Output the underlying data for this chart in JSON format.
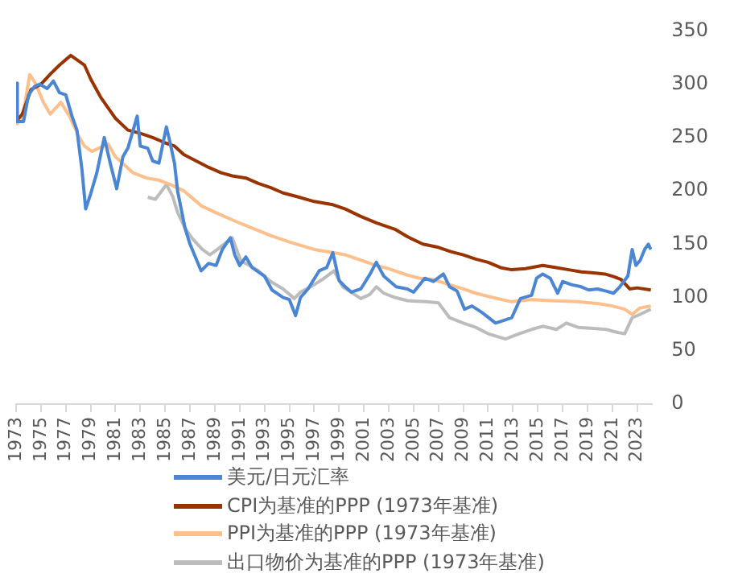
{
  "chart_data": {
    "type": "line",
    "xlim": [
      1973,
      2024.2
    ],
    "xticks": [
      1973,
      1975,
      1977,
      1979,
      1981,
      1983,
      1985,
      1987,
      1989,
      1991,
      1993,
      1995,
      1997,
      1999,
      2001,
      2003,
      2005,
      2007,
      2009,
      2011,
      2013,
      2015,
      2017,
      2019,
      2021,
      2023
    ],
    "ylim": [
      0,
      350
    ],
    "yticks": [
      0,
      50,
      100,
      150,
      200,
      250,
      300,
      350
    ],
    "grid": false,
    "legend": "bottom",
    "marker": "none",
    "line_style": "solid",
    "series": [
      {
        "name": "美元/日元汇率",
        "color": "#4a86d4",
        "x": [
          1973.0,
          1973.1,
          1973.6,
          1974.0,
          1974.5,
          1974.9,
          1975.5,
          1976.0,
          1976.5,
          1977.0,
          1977.5,
          1977.9,
          1978.3,
          1978.6,
          1979.0,
          1979.5,
          1980.1,
          1980.6,
          1981.1,
          1981.6,
          1982.0,
          1982.75,
          1983.0,
          1983.6,
          1984.0,
          1984.5,
          1985.1,
          1985.4,
          1985.75,
          1986.0,
          1986.6,
          1987.0,
          1987.9,
          1988.5,
          1989.1,
          1989.6,
          1990.25,
          1990.6,
          1991.0,
          1991.5,
          1992.0,
          1993.0,
          1993.6,
          1994.5,
          1995.0,
          1995.5,
          1995.9,
          1996.5,
          1997.4,
          1998.0,
          1998.5,
          1999.0,
          1999.5,
          2000.0,
          2000.75,
          2001.5,
          2002.0,
          2002.6,
          2003.6,
          2004.5,
          2005.0,
          2005.9,
          2006.6,
          2007.4,
          2007.9,
          2008.5,
          2009.1,
          2009.7,
          2010.5,
          2011.6,
          2012.4,
          2012.9,
          2013.6,
          2014.5,
          2014.9,
          2015.4,
          2016.0,
          2016.6,
          2017.0,
          2017.7,
          2018.5,
          2019.1,
          2019.8,
          2020.5,
          2021.1,
          2021.6,
          2022.25,
          2022.6,
          2022.9,
          2023.25,
          2023.6,
          2023.9,
          2024.1
        ],
        "values": [
          301,
          265,
          265,
          290,
          298,
          300,
          296,
          303,
          292,
          290,
          270,
          257,
          220,
          183,
          197,
          217,
          250,
          225,
          202,
          232,
          240,
          270,
          242,
          240,
          228,
          226,
          260,
          245,
          226,
          200,
          165,
          150,
          125,
          132,
          130,
          145,
          156,
          140,
          130,
          138,
          128,
          120,
          107,
          100,
          98,
          83,
          100,
          108,
          125,
          128,
          142,
          116,
          110,
          105,
          108,
          122,
          133,
          120,
          110,
          108,
          105,
          118,
          115,
          122,
          110,
          106,
          89,
          92,
          86,
          76,
          79,
          81,
          99,
          102,
          118,
          122,
          118,
          104,
          115,
          112,
          110,
          107,
          108,
          106,
          104,
          110,
          120,
          145,
          130,
          135,
          145,
          150,
          145
        ]
      },
      {
        "name": "CPI为基准的PPP (1973年基准)",
        "color": "#993300",
        "x": [
          1973.0,
          1973.5,
          1974.2,
          1975.0,
          1975.8,
          1976.5,
          1977.4,
          1978.0,
          1978.5,
          1979.0,
          1979.8,
          1980.4,
          1981.0,
          1982.0,
          1983.0,
          1984.0,
          1985.0,
          1985.75,
          1986.5,
          1987.5,
          1988.5,
          1989.5,
          1990.4,
          1991.5,
          1992.5,
          1993.5,
          1994.5,
          1995.5,
          1997.0,
          1998.5,
          1999.5,
          2000.75,
          2002.0,
          2003.5,
          2004.5,
          2005.75,
          2007.0,
          2008.0,
          2009.0,
          2010.0,
          2011.0,
          2012.0,
          2012.9,
          2014.0,
          2015.4,
          2016.5,
          2017.5,
          2018.5,
          2019.5,
          2020.4,
          2021.0,
          2021.7,
          2022.4,
          2023.0,
          2024.1
        ],
        "values": [
          265,
          272,
          295,
          300,
          310,
          318,
          327,
          322,
          318,
          305,
          288,
          278,
          268,
          257,
          254,
          250,
          245,
          242,
          234,
          228,
          222,
          217,
          214,
          212,
          207,
          203,
          198,
          195,
          190,
          187,
          183,
          176,
          170,
          164,
          157,
          150,
          147,
          143,
          140,
          136,
          133,
          128,
          126,
          127,
          130,
          128,
          126,
          124,
          123,
          122,
          120,
          117,
          108,
          109,
          107
        ]
      },
      {
        "name": "PPI为基准的PPP (1973年基准)",
        "color": "#fdc08c",
        "x": [
          1973.0,
          1973.5,
          1974.1,
          1974.6,
          1975.2,
          1975.75,
          1976.6,
          1977.3,
          1978.0,
          1978.5,
          1979.1,
          1980.4,
          1981.0,
          1982.4,
          1983.5,
          1984.5,
          1985.4,
          1986.5,
          1987.9,
          1989.0,
          1990.75,
          1992.0,
          1993.5,
          1995.0,
          1997.0,
          1998.0,
          1999.5,
          2000.75,
          2002.0,
          2003.0,
          2004.5,
          2005.5,
          2006.5,
          2007.9,
          2009.0,
          2010.0,
          2011.0,
          2012.9,
          2014.5,
          2016.0,
          2018.25,
          2020.0,
          2021.0,
          2022.0,
          2022.6,
          2023.2,
          2024.1
        ],
        "values": [
          262,
          268,
          309,
          300,
          283,
          272,
          283,
          270,
          252,
          242,
          237,
          244,
          232,
          217,
          212,
          210,
          206,
          200,
          186,
          180,
          171,
          165,
          158,
          152,
          145,
          143,
          140,
          135,
          130,
          127,
          121,
          118,
          117,
          112,
          108,
          104,
          101,
          96,
          98,
          97,
          96,
          94,
          92,
          89,
          84,
          90,
          92
        ]
      },
      {
        "name": "出口物价为基准的PPP (1973年基准)",
        "color": "#bcbcbc",
        "x": [
          1983.6,
          1984.2,
          1984.6,
          1985.1,
          1985.6,
          1986.0,
          1986.6,
          1987.2,
          1988.0,
          1988.6,
          1989.2,
          1990.4,
          1991.1,
          1991.8,
          1992.5,
          1993.5,
          1994.5,
          1995.4,
          1995.9,
          1997.0,
          1997.8,
          1998.6,
          1999.3,
          2000.75,
          2001.5,
          2002.0,
          2002.6,
          2003.5,
          2004.5,
          2006.0,
          2007.0,
          2007.9,
          2009.0,
          2010.0,
          2011.0,
          2012.4,
          2013.5,
          2014.5,
          2015.4,
          2016.5,
          2017.3,
          2018.25,
          2019.5,
          2020.5,
          2021.5,
          2022.0,
          2022.6,
          2023.2,
          2024.1
        ],
        "values": [
          194,
          192,
          198,
          206,
          195,
          180,
          165,
          155,
          145,
          140,
          145,
          156,
          134,
          130,
          125,
          115,
          108,
          99,
          105,
          112,
          118,
          125,
          110,
          99,
          103,
          110,
          104,
          100,
          97,
          96,
          95,
          81,
          76,
          72,
          66,
          61,
          66,
          70,
          73,
          70,
          76,
          72,
          71,
          70,
          67,
          66,
          81,
          84,
          89
        ]
      }
    ]
  }
}
